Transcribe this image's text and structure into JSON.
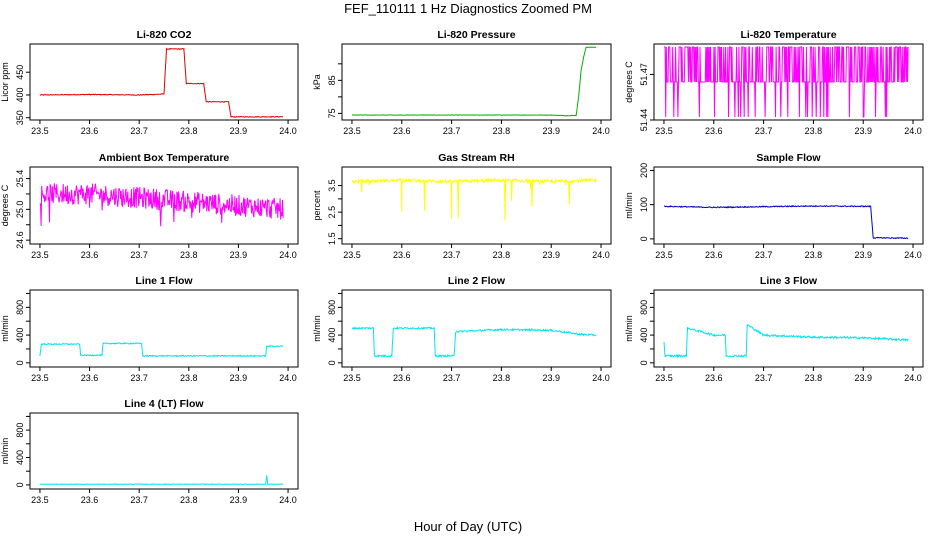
{
  "page": {
    "title": "FEF_110111  1 Hz Diagnostics Zoomed PM",
    "xlabel": "Hour of Day (UTC)"
  },
  "chart_data": [
    {
      "type": "line",
      "title": "Li-820 CO2",
      "ylabel": "Licor ppm",
      "color": "#e00000",
      "xlim": [
        23.48,
        24.02
      ],
      "ylim": [
        345,
        512
      ],
      "xticks": [
        23.5,
        23.6,
        23.7,
        23.8,
        23.9,
        24.0
      ],
      "xtick_labels": [
        "23.5",
        "23.6",
        "23.7",
        "23.8",
        "23.9",
        "24.0"
      ],
      "yticks": [
        350,
        400,
        450
      ],
      "ytick_labels": [
        "350",
        "400",
        "450"
      ],
      "series": [
        {
          "x": [
            23.5,
            23.6,
            23.7,
            23.75,
            23.755,
            23.79,
            23.795,
            23.83,
            23.835,
            23.88,
            23.885,
            23.99
          ],
          "y": [
            400,
            401,
            400,
            402,
            501,
            501,
            425,
            425,
            385,
            385,
            352,
            352
          ]
        }
      ]
    },
    {
      "type": "line",
      "title": "Li-820 Pressure",
      "ylabel": "kPa",
      "color": "#00b000",
      "xlim": [
        23.48,
        24.02
      ],
      "ylim": [
        73,
        96
      ],
      "xticks": [
        23.5,
        23.6,
        23.7,
        23.8,
        23.9,
        24.0
      ],
      "xtick_labels": [
        "23.5",
        "23.6",
        "23.7",
        "23.8",
        "23.9",
        "24.0"
      ],
      "yticks": [
        75,
        80,
        85,
        90
      ],
      "ytick_labels": [
        "75",
        "",
        "85",
        ""
      ],
      "series": [
        {
          "x": [
            23.5,
            23.7,
            23.9,
            23.93,
            23.95,
            23.955,
            23.96,
            23.965,
            23.97,
            23.99
          ],
          "y": [
            74.5,
            74.5,
            74.5,
            74.3,
            74.4,
            80,
            88,
            92,
            95,
            95
          ]
        }
      ]
    },
    {
      "type": "line",
      "title": "Li-820 Temperature",
      "ylabel": "degrees C",
      "color": "#ff00ff",
      "xlim": [
        23.48,
        24.02
      ],
      "ylim": [
        51.44,
        51.49
      ],
      "xticks": [
        23.5,
        23.6,
        23.7,
        23.8,
        23.9,
        24.0
      ],
      "xtick_labels": [
        "23.5",
        "23.6",
        "23.7",
        "23.8",
        "23.9",
        "24.0"
      ],
      "yticks": [
        51.44,
        51.47
      ],
      "ytick_labels": [
        "51.44",
        "51.47"
      ],
      "series": [
        {
          "x": [
            23.5,
            23.99
          ],
          "y": [
            51.465,
            51.465
          ]
        }
      ]
    },
    {
      "type": "line",
      "title": "Ambient Box Temperature",
      "ylabel": "degrees C",
      "color": "#ff00ff",
      "xlim": [
        23.48,
        24.02
      ],
      "ylim": [
        24.55,
        25.55
      ],
      "xticks": [
        23.5,
        23.6,
        23.7,
        23.8,
        23.9,
        24.0
      ],
      "xtick_labels": [
        "23.5",
        "23.6",
        "23.7",
        "23.8",
        "23.9",
        "24.0"
      ],
      "yticks": [
        24.6,
        24.8,
        25.0,
        25.2,
        25.4
      ],
      "ytick_labels": [
        "24.6",
        "",
        "25.0",
        "",
        "25.4"
      ],
      "series": [
        {
          "x": [
            23.5,
            23.6,
            23.7,
            23.8,
            23.9,
            23.99
          ],
          "y": [
            25.2,
            25.2,
            25.15,
            25.1,
            25.05,
            25.0
          ]
        }
      ]
    },
    {
      "type": "line",
      "title": "Gas Stream RH",
      "ylabel": "percent",
      "color": "#ffff00",
      "xlim": [
        23.48,
        24.02
      ],
      "ylim": [
        1.3,
        4.2
      ],
      "xticks": [
        23.5,
        23.6,
        23.7,
        23.8,
        23.9,
        24.0
      ],
      "xtick_labels": [
        "23.5",
        "23.6",
        "23.7",
        "23.8",
        "23.9",
        "24.0"
      ],
      "yticks": [
        1.5,
        2.0,
        2.5,
        3.0,
        3.5
      ],
      "ytick_labels": [
        "1.5",
        "",
        "2.5",
        "",
        "3.5"
      ],
      "series": [
        {
          "x": [
            23.5,
            23.6,
            23.7,
            23.8,
            23.9,
            23.99
          ],
          "y": [
            3.65,
            3.7,
            3.65,
            3.7,
            3.65,
            3.7
          ]
        }
      ]
    },
    {
      "type": "line",
      "title": "Sample Flow",
      "ylabel": "ml/min",
      "color": "#0000cc",
      "xlim": [
        23.48,
        24.02
      ],
      "ylim": [
        -15,
        210
      ],
      "xticks": [
        23.5,
        23.6,
        23.7,
        23.8,
        23.9,
        24.0
      ],
      "xtick_labels": [
        "23.5",
        "23.6",
        "23.7",
        "23.8",
        "23.9",
        "24.0"
      ],
      "yticks": [
        0,
        100,
        200
      ],
      "ytick_labels": [
        "0",
        "100",
        "200"
      ],
      "series": [
        {
          "x": [
            23.5,
            23.6,
            23.7,
            23.8,
            23.9,
            23.915,
            23.92,
            23.99
          ],
          "y": [
            95,
            92,
            94,
            96,
            95,
            95,
            3,
            2
          ]
        }
      ]
    },
    {
      "type": "line",
      "title": "Line 1 Flow",
      "ylabel": "ml/min",
      "color": "#00e5ee",
      "xlim": [
        23.48,
        24.02
      ],
      "ylim": [
        -60,
        1050
      ],
      "xticks": [
        23.5,
        23.6,
        23.7,
        23.8,
        23.9,
        24.0
      ],
      "xtick_labels": [
        "23.5",
        "23.6",
        "23.7",
        "23.8",
        "23.9",
        "24.0"
      ],
      "yticks": [
        0,
        200,
        400,
        600,
        800,
        1000
      ],
      "ytick_labels": [
        "0",
        "",
        "400",
        "",
        "800",
        ""
      ],
      "series": [
        {
          "x": [
            23.5,
            23.503,
            23.58,
            23.582,
            23.625,
            23.627,
            23.705,
            23.707,
            23.955,
            23.957,
            23.99
          ],
          "y": [
            100,
            270,
            270,
            110,
            110,
            280,
            280,
            100,
            100,
            240,
            240
          ]
        }
      ]
    },
    {
      "type": "line",
      "title": "Line 2 Flow",
      "ylabel": "ml/min",
      "color": "#00e5ee",
      "xlim": [
        23.48,
        24.02
      ],
      "ylim": [
        -60,
        1050
      ],
      "xticks": [
        23.5,
        23.6,
        23.7,
        23.8,
        23.9,
        24.0
      ],
      "xtick_labels": [
        "23.5",
        "23.6",
        "23.7",
        "23.8",
        "23.9",
        "24.0"
      ],
      "yticks": [
        0,
        200,
        400,
        600,
        800,
        1000
      ],
      "ytick_labels": [
        "0",
        "",
        "400",
        "",
        "800",
        ""
      ],
      "series": [
        {
          "x": [
            23.5,
            23.543,
            23.545,
            23.58,
            23.583,
            23.665,
            23.667,
            23.705,
            23.708,
            23.8,
            23.9,
            23.96,
            23.99
          ],
          "y": [
            500,
            500,
            100,
            100,
            500,
            500,
            100,
            100,
            450,
            480,
            470,
            410,
            400
          ]
        }
      ]
    },
    {
      "type": "line",
      "title": "Line 3 Flow",
      "ylabel": "ml/min",
      "color": "#00e5ee",
      "xlim": [
        23.48,
        24.02
      ],
      "ylim": [
        -60,
        1050
      ],
      "xticks": [
        23.5,
        23.6,
        23.7,
        23.8,
        23.9,
        24.0
      ],
      "xtick_labels": [
        "23.5",
        "23.6",
        "23.7",
        "23.8",
        "23.9",
        "24.0"
      ],
      "yticks": [
        0,
        200,
        400,
        600,
        800,
        1000
      ],
      "ytick_labels": [
        "0",
        "",
        "400",
        "",
        "800",
        ""
      ],
      "series": [
        {
          "x": [
            23.5,
            23.502,
            23.545,
            23.547,
            23.6,
            23.623,
            23.625,
            23.665,
            23.667,
            23.7,
            23.8,
            23.9,
            23.99
          ],
          "y": [
            300,
            100,
            100,
            500,
            400,
            400,
            100,
            100,
            550,
            400,
            370,
            360,
            330
          ]
        }
      ]
    },
    {
      "type": "line",
      "title": "Line 4 (LT) Flow",
      "ylabel": "ml/min",
      "color": "#00e5ee",
      "xlim": [
        23.48,
        24.02
      ],
      "ylim": [
        -60,
        1050
      ],
      "xticks": [
        23.5,
        23.6,
        23.7,
        23.8,
        23.9,
        24.0
      ],
      "xtick_labels": [
        "23.5",
        "23.6",
        "23.7",
        "23.8",
        "23.9",
        "24.0"
      ],
      "yticks": [
        0,
        200,
        400,
        600,
        800,
        1000
      ],
      "ytick_labels": [
        "0",
        "",
        "400",
        "",
        "800",
        ""
      ],
      "series": [
        {
          "x": [
            23.5,
            23.955,
            23.957,
            23.959,
            23.99
          ],
          "y": [
            10,
            10,
            140,
            10,
            10
          ]
        }
      ]
    }
  ]
}
